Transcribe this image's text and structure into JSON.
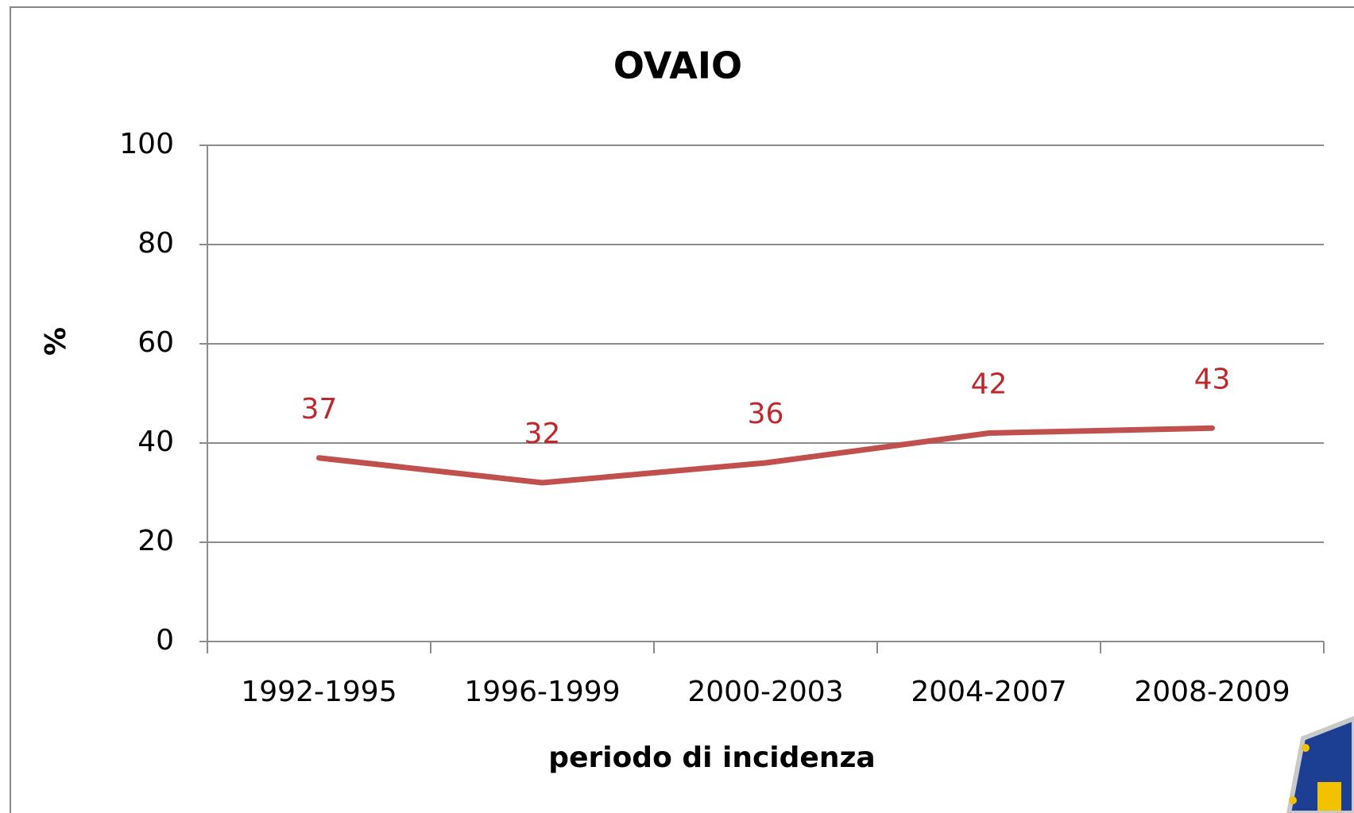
{
  "chart_data": {
    "type": "line",
    "title": "OVAIO",
    "x_label": "periodo di incidenza",
    "y_label": "%",
    "categories": [
      "1992-1995",
      "1996-1999",
      "2000-2003",
      "2004-2007",
      "2008-2009"
    ],
    "series": [
      {
        "name": "OVAIO",
        "color": "#c0504d",
        "values": [
          37,
          32,
          36,
          42,
          43
        ]
      }
    ],
    "ylim": [
      0,
      100
    ],
    "yticks": [
      0,
      20,
      40,
      60,
      80,
      100
    ],
    "grid": true,
    "label_color": "#c0272d"
  }
}
